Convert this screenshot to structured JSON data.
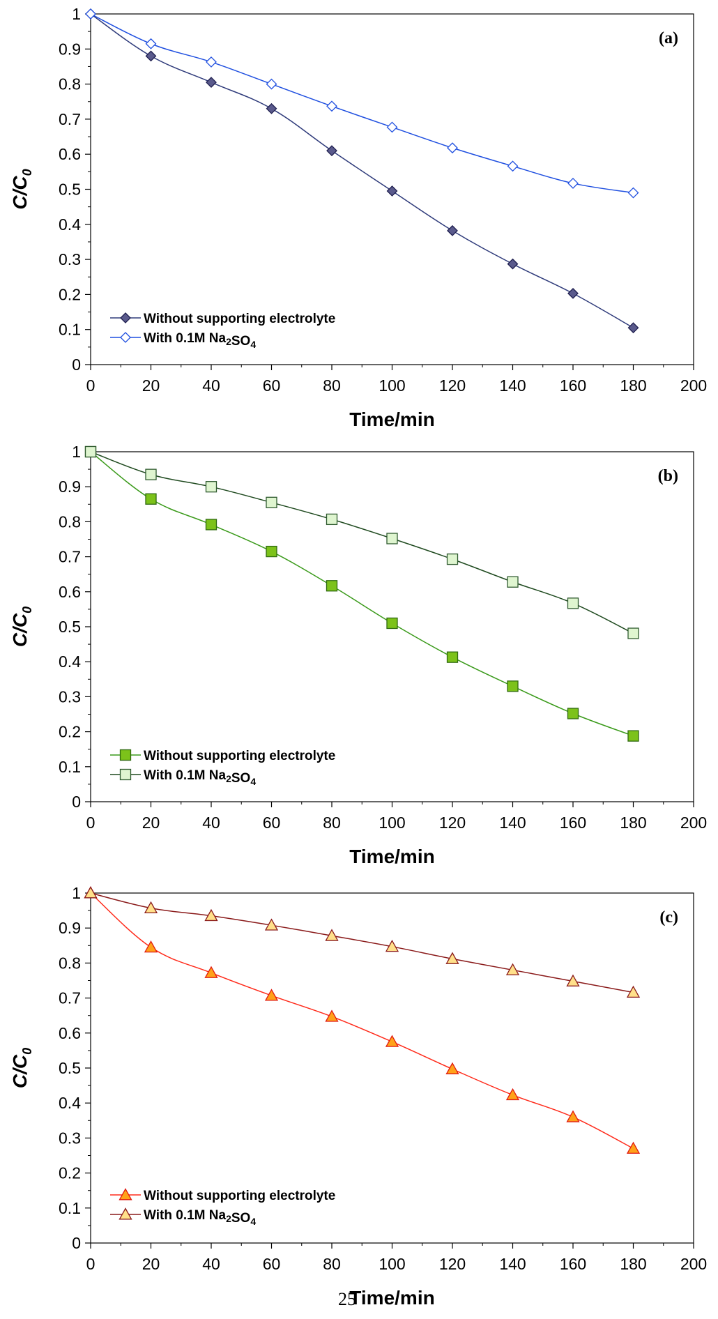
{
  "page_number": "25",
  "chart_data": [
    {
      "type": "line",
      "panel_label": "(a)",
      "xlabel": "Time/min",
      "ylabel_main": "C/C",
      "ylabel_sub": "0",
      "xlim": [
        0,
        200
      ],
      "ylim": [
        0,
        1
      ],
      "x_ticks": [
        "0",
        "20",
        "40",
        "60",
        "80",
        "100",
        "120",
        "140",
        "160",
        "180",
        "200"
      ],
      "y_ticks": [
        "0",
        "0.1",
        "0.2",
        "0.3",
        "0.4",
        "0.5",
        "0.6",
        "0.7",
        "0.8",
        "0.9",
        "1"
      ],
      "legend_position": "bottom-left",
      "series": [
        {
          "name": "Without supporting electrolyte",
          "marker": "diamond",
          "filled": true,
          "line_color": "#2e3a7a",
          "marker_fill": "#5a5a8c",
          "marker_stroke": "#1f1f4f",
          "x": [
            0,
            20,
            40,
            60,
            80,
            100,
            120,
            140,
            160,
            180
          ],
          "values": [
            1.0,
            0.88,
            0.805,
            0.73,
            0.61,
            0.495,
            0.382,
            0.287,
            0.203,
            0.105
          ]
        },
        {
          "name": "With 0.1M Na₂SO₄",
          "marker": "diamond",
          "filled": false,
          "line_color": "#1f4fe0",
          "marker_fill": "#ffffff",
          "marker_stroke": "#1f4fe0",
          "x": [
            0,
            20,
            40,
            60,
            80,
            100,
            120,
            140,
            160,
            180
          ],
          "values": [
            1.0,
            0.915,
            0.863,
            0.8,
            0.737,
            0.677,
            0.618,
            0.566,
            0.517,
            0.49
          ]
        }
      ]
    },
    {
      "type": "line",
      "panel_label": "(b)",
      "xlabel": "Time/min",
      "ylabel_main": "C/C",
      "ylabel_sub": "0",
      "xlim": [
        0,
        200
      ],
      "ylim": [
        0,
        1
      ],
      "x_ticks": [
        "0",
        "20",
        "40",
        "60",
        "80",
        "100",
        "120",
        "140",
        "160",
        "180",
        "200"
      ],
      "y_ticks": [
        "0",
        "0.1",
        "0.2",
        "0.3",
        "0.4",
        "0.5",
        "0.6",
        "0.7",
        "0.8",
        "0.9",
        "1"
      ],
      "legend_position": "bottom-left",
      "series": [
        {
          "name": "Without supporting electrolyte",
          "marker": "square",
          "filled": true,
          "line_color": "#3a9a1a",
          "marker_fill": "#7cc21a",
          "marker_stroke": "#2f6a10",
          "x": [
            0,
            20,
            40,
            60,
            80,
            100,
            120,
            140,
            160,
            180
          ],
          "values": [
            1.0,
            0.865,
            0.792,
            0.715,
            0.617,
            0.51,
            0.413,
            0.33,
            0.252,
            0.188
          ]
        },
        {
          "name": "With 0.1M Na₂SO₄",
          "marker": "square",
          "filled": false,
          "line_color": "#1f4a1f",
          "marker_fill": "#dff5d0",
          "marker_stroke": "#2f5a2f",
          "x": [
            0,
            20,
            40,
            60,
            80,
            100,
            120,
            140,
            160,
            180
          ],
          "values": [
            1.0,
            0.935,
            0.9,
            0.855,
            0.807,
            0.752,
            0.693,
            0.628,
            0.567,
            0.481
          ]
        }
      ]
    },
    {
      "type": "line",
      "panel_label": "(c)",
      "xlabel": "Time/min",
      "ylabel_main": "C/C",
      "ylabel_sub": "0",
      "xlim": [
        0,
        200
      ],
      "ylim": [
        0,
        1
      ],
      "x_ticks": [
        "0",
        "20",
        "40",
        "60",
        "80",
        "100",
        "120",
        "140",
        "160",
        "180",
        "200"
      ],
      "y_ticks": [
        "0",
        "0.1",
        "0.2",
        "0.3",
        "0.4",
        "0.5",
        "0.6",
        "0.7",
        "0.8",
        "0.9",
        "1"
      ],
      "legend_position": "bottom-left",
      "series": [
        {
          "name": "Without supporting electrolyte",
          "marker": "triangle",
          "filled": true,
          "line_color": "#ff2a1a",
          "marker_fill": "#ffa21a",
          "marker_stroke": "#e01a10",
          "x": [
            0,
            20,
            40,
            60,
            80,
            100,
            120,
            140,
            160,
            180
          ],
          "values": [
            1.0,
            0.845,
            0.772,
            0.707,
            0.647,
            0.575,
            0.497,
            0.423,
            0.36,
            0.27
          ]
        },
        {
          "name": "With 0.1M Na₂SO₄",
          "marker": "triangle",
          "filled": false,
          "line_color": "#8a1a1a",
          "marker_fill": "#ffe08a",
          "marker_stroke": "#8a1a1a",
          "x": [
            0,
            20,
            40,
            60,
            80,
            100,
            120,
            140,
            160,
            180
          ],
          "values": [
            1.0,
            0.957,
            0.935,
            0.908,
            0.878,
            0.847,
            0.812,
            0.78,
            0.748,
            0.716
          ]
        }
      ]
    }
  ]
}
